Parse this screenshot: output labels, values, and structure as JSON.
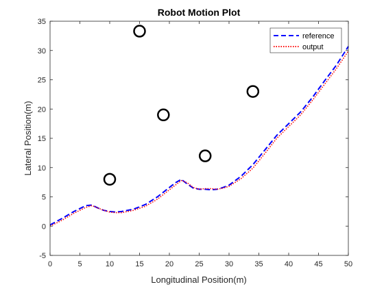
{
  "chart_data": {
    "type": "line",
    "title": "Robot Motion Plot",
    "xlabel": "Longitudinal Position(m)",
    "ylabel": "Lateral Position(m)",
    "xlim": [
      0,
      50
    ],
    "ylim": [
      -5,
      35
    ],
    "xticks": [
      0,
      5,
      10,
      15,
      20,
      25,
      30,
      35,
      40,
      45,
      50
    ],
    "yticks": [
      -5,
      0,
      5,
      10,
      15,
      20,
      25,
      30,
      35
    ],
    "grid": false,
    "legend_position": "top-right",
    "series": [
      {
        "name": "reference",
        "color": "#0000ff",
        "style": "dashed",
        "x": [
          0,
          2,
          4,
          6,
          7,
          8,
          9,
          10,
          11,
          12,
          14,
          16,
          18,
          20,
          21,
          22,
          23,
          24,
          25,
          26,
          27,
          28,
          29,
          30,
          32,
          34,
          36,
          38,
          40,
          42,
          44,
          46,
          48,
          50
        ],
        "y": [
          0.2,
          1.3,
          2.5,
          3.5,
          3.6,
          3.1,
          2.7,
          2.5,
          2.4,
          2.5,
          2.9,
          3.7,
          5.0,
          6.6,
          7.4,
          8.0,
          7.2,
          6.5,
          6.3,
          6.3,
          6.2,
          6.3,
          6.6,
          7.0,
          8.5,
          10.5,
          13.0,
          15.5,
          17.5,
          19.5,
          22.0,
          24.8,
          27.5,
          30.7
        ]
      },
      {
        "name": "output",
        "color": "#ff0000",
        "style": "dotted",
        "x": [
          0,
          2,
          4,
          6,
          7,
          8,
          9,
          10,
          11,
          12,
          14,
          16,
          18,
          20,
          21,
          22,
          23,
          24,
          25,
          26,
          27,
          28,
          29,
          30,
          32,
          34,
          36,
          38,
          40,
          42,
          44,
          46,
          48,
          50
        ],
        "y": [
          0.0,
          1.0,
          2.2,
          3.2,
          3.5,
          3.1,
          2.7,
          2.4,
          2.3,
          2.3,
          2.7,
          3.4,
          4.6,
          6.2,
          7.0,
          7.8,
          7.4,
          6.6,
          6.3,
          6.4,
          6.4,
          6.3,
          6.5,
          6.8,
          8.1,
          9.9,
          12.4,
          15.0,
          17.0,
          19.0,
          21.5,
          24.2,
          26.9,
          29.9
        ]
      }
    ],
    "obstacles": [
      {
        "x": 10,
        "y": 8
      },
      {
        "x": 15,
        "y": 33.3
      },
      {
        "x": 19,
        "y": 19
      },
      {
        "x": 26,
        "y": 12
      },
      {
        "x": 34,
        "y": 23
      }
    ]
  }
}
